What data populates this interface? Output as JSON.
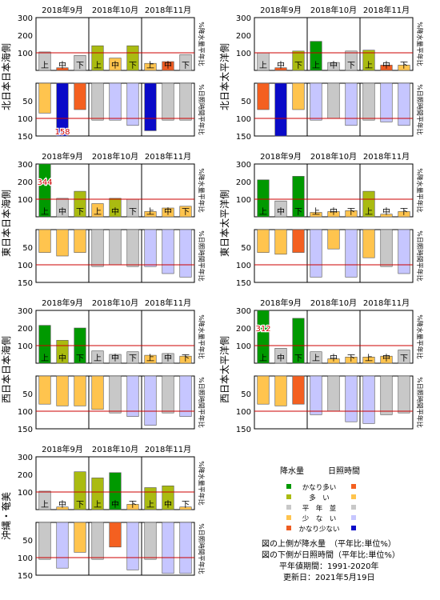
{
  "chart_data": [
    {
      "type": "bar",
      "region": "北日本日本海側",
      "months": [
        "2018年9月",
        "2018年10月",
        "2018年11月"
      ],
      "categories": [
        "上",
        "中",
        "下",
        "上",
        "中",
        "下",
        "上",
        "中",
        "下"
      ],
      "precipitation": {
        "values": [
          105,
          15,
          85,
          140,
          70,
          140,
          40,
          50,
          90
        ],
        "classes": [
          "normal",
          "much-below",
          "normal",
          "above",
          "below",
          "above",
          "below",
          "much-below",
          "normal"
        ],
        "ylim": [
          0,
          300
        ],
        "ticks": [
          100,
          200,
          300
        ],
        "ylabel": "%降水量平年比"
      },
      "sunshine": {
        "values": [
          85,
          158,
          75,
          105,
          105,
          120,
          135,
          105,
          105
        ],
        "classes": [
          "above",
          "much-below",
          "much-above",
          "normal",
          "below",
          "below",
          "much-below",
          "normal",
          "normal"
        ],
        "ylim": [
          0,
          150
        ],
        "ticks": [
          50,
          100,
          150
        ],
        "ylabel": "%日照時間平年比"
      },
      "labels": [
        {
          "panel": "sunshine",
          "index": 1,
          "text": "158"
        }
      ]
    },
    {
      "type": "bar",
      "region": "北日本太平洋側",
      "months": [
        "2018年9月",
        "2018年10月",
        "2018年11月"
      ],
      "categories": [
        "上",
        "中",
        "下",
        "上",
        "中",
        "下",
        "上",
        "中",
        "下"
      ],
      "precipitation": {
        "values": [
          100,
          15,
          110,
          165,
          45,
          110,
          115,
          30,
          30
        ],
        "classes": [
          "normal",
          "much-below",
          "above",
          "much-above",
          "normal",
          "normal",
          "above",
          "much-below",
          "below"
        ],
        "ylim": [
          0,
          300
        ],
        "ticks": [
          100,
          200,
          300
        ],
        "ylabel": "%降水量平年比"
      },
      "sunshine": {
        "values": [
          75,
          150,
          75,
          105,
          100,
          120,
          105,
          110,
          120
        ],
        "classes": [
          "much-above",
          "much-below",
          "above",
          "below",
          "normal",
          "below",
          "normal",
          "below",
          "below"
        ],
        "ylim": [
          0,
          150
        ],
        "ticks": [
          50,
          100,
          150
        ],
        "ylabel": "%日照時間平年比"
      }
    },
    {
      "type": "bar",
      "region": "東日本日本海側",
      "months": [
        "2018年9月",
        "2018年10月",
        "2018年11月"
      ],
      "categories": [
        "上",
        "中",
        "下",
        "上",
        "中",
        "下",
        "上",
        "中",
        "下"
      ],
      "precipitation": {
        "values": [
          344,
          105,
          145,
          75,
          105,
          100,
          30,
          50,
          60
        ],
        "classes": [
          "much-above",
          "normal",
          "above",
          "below",
          "above",
          "normal",
          "below",
          "below",
          "below"
        ],
        "ylim": [
          0,
          300
        ],
        "ticks": [
          100,
          200,
          300
        ],
        "ylabel": "%降水量平年比"
      },
      "sunshine": {
        "values": [
          65,
          75,
          65,
          105,
          100,
          105,
          105,
          125,
          135
        ],
        "classes": [
          "above",
          "above",
          "above",
          "normal",
          "normal",
          "normal",
          "below",
          "below",
          "below"
        ],
        "ylim": [
          0,
          150
        ],
        "ticks": [
          50,
          100,
          150
        ],
        "ylabel": "%日照時間平年比"
      },
      "labels": [
        {
          "panel": "precipitation",
          "index": 0,
          "text": "344"
        }
      ]
    },
    {
      "type": "bar",
      "region": "東日本太平洋側",
      "months": [
        "2018年9月",
        "2018年10月",
        "2018年11月"
      ],
      "categories": [
        "上",
        "中",
        "下",
        "上",
        "中",
        "下",
        "上",
        "中",
        "下"
      ],
      "precipitation": {
        "values": [
          210,
          90,
          230,
          25,
          30,
          35,
          145,
          15,
          30
        ],
        "classes": [
          "much-above",
          "normal",
          "much-above",
          "below",
          "below",
          "below",
          "above",
          "below",
          "below"
        ],
        "ylim": [
          0,
          300
        ],
        "ticks": [
          100,
          200,
          300
        ],
        "ylabel": "%降水量平年比"
      },
      "sunshine": {
        "values": [
          65,
          70,
          65,
          135,
          55,
          135,
          80,
          105,
          125
        ],
        "classes": [
          "above",
          "above",
          "much-above",
          "below",
          "above",
          "below",
          "above",
          "normal",
          "below"
        ],
        "ylim": [
          0,
          150
        ],
        "ticks": [
          50,
          100,
          150
        ],
        "ylabel": "%日照時間平年比"
      }
    },
    {
      "type": "bar",
      "region": "西日本日本海側",
      "months": [
        "2018年9月",
        "2018年10月",
        "2018年11月"
      ],
      "categories": [
        "上",
        "中",
        "下",
        "上",
        "中",
        "下",
        "上",
        "中",
        "下"
      ],
      "precipitation": {
        "values": [
          215,
          130,
          200,
          70,
          50,
          65,
          45,
          55,
          40
        ],
        "classes": [
          "much-above",
          "above",
          "much-above",
          "normal",
          "normal",
          "normal",
          "below",
          "normal",
          "below"
        ],
        "ylim": [
          0,
          300
        ],
        "ticks": [
          100,
          200,
          300
        ],
        "ylabel": "%降水量平年比"
      },
      "sunshine": {
        "values": [
          80,
          85,
          85,
          95,
          105,
          115,
          140,
          105,
          115
        ],
        "classes": [
          "above",
          "above",
          "above",
          "above",
          "normal",
          "below",
          "below",
          "normal",
          "below"
        ],
        "ylim": [
          0,
          150
        ],
        "ticks": [
          50,
          100,
          150
        ],
        "ylabel": "%日照時間平年比"
      }
    },
    {
      "type": "bar",
      "region": "西日本太平洋側",
      "months": [
        "2018年9月",
        "2018年10月",
        "2018年11月"
      ],
      "categories": [
        "上",
        "中",
        "下",
        "上",
        "中",
        "下",
        "上",
        "中",
        "下"
      ],
      "precipitation": {
        "values": [
          312,
          85,
          255,
          65,
          25,
          35,
          35,
          40,
          75
        ],
        "classes": [
          "much-above",
          "normal",
          "much-above",
          "normal",
          "below",
          "below",
          "below",
          "below",
          "normal"
        ],
        "ylim": [
          0,
          300
        ],
        "ticks": [
          100,
          200,
          300
        ],
        "ylabel": "%降水量平年比"
      },
      "sunshine": {
        "values": [
          80,
          85,
          80,
          110,
          100,
          130,
          135,
          110,
          105
        ],
        "classes": [
          "above",
          "above",
          "much-above",
          "below",
          "normal",
          "below",
          "below",
          "normal",
          "normal"
        ],
        "ylim": [
          0,
          150
        ],
        "ticks": [
          50,
          100,
          150
        ],
        "ylabel": "%日照時間平年比"
      },
      "labels": [
        {
          "panel": "precipitation",
          "index": 0,
          "text": "312"
        }
      ]
    },
    {
      "type": "bar",
      "region": "沖縄・奄美",
      "months": [
        "2018年9月",
        "2018年10月",
        "2018年11月"
      ],
      "categories": [
        "上",
        "中",
        "下",
        "上",
        "中",
        "下",
        "上",
        "中",
        "下"
      ],
      "precipitation": {
        "values": [
          105,
          15,
          215,
          180,
          210,
          30,
          125,
          135,
          15
        ],
        "classes": [
          "normal",
          "below",
          "above",
          "above",
          "much-above",
          "below",
          "above",
          "above",
          "below"
        ],
        "ylim": [
          0,
          300
        ],
        "ticks": [
          100,
          200,
          300
        ],
        "ylabel": "%降水量平年比"
      },
      "sunshine": {
        "values": [
          105,
          130,
          85,
          105,
          70,
          135,
          105,
          145,
          145
        ],
        "classes": [
          "normal",
          "below",
          "above",
          "normal",
          "much-above",
          "below",
          "normal",
          "below",
          "below"
        ],
        "ylim": [
          0,
          150
        ],
        "ticks": [
          50,
          100,
          150
        ],
        "ylabel": "%日照時間平年比"
      }
    }
  ],
  "colors": {
    "precipitation": {
      "much-above": "#009900",
      "above": "#aabb11",
      "normal": "#c8c8c8",
      "below": "#ffc44e",
      "much-below": "#ee5c22"
    },
    "sunshine": {
      "much-above": "#f46020",
      "above": "#ffc44e",
      "normal": "#c8c8c8",
      "below": "#c6c6ff",
      "much-below": "#0a0ac8"
    },
    "grid_line": "#cc0000"
  },
  "legend": {
    "title_precip": "降水量",
    "title_sun": "日照時間",
    "classes": [
      "much-above",
      "above",
      "normal",
      "below",
      "much-below"
    ],
    "labels": [
      "かなり多い",
      "多　い",
      "平　年　並",
      "少　な　い",
      "かなり少ない"
    ]
  },
  "notes": {
    "line1": "図の上側が降水量　（平年比:単位%）",
    "line2": "図の下側が日照時間（平年比:単位%）",
    "line3": "平年値期間：1991-2020年",
    "line4": "更新日：2021年5月19日"
  }
}
